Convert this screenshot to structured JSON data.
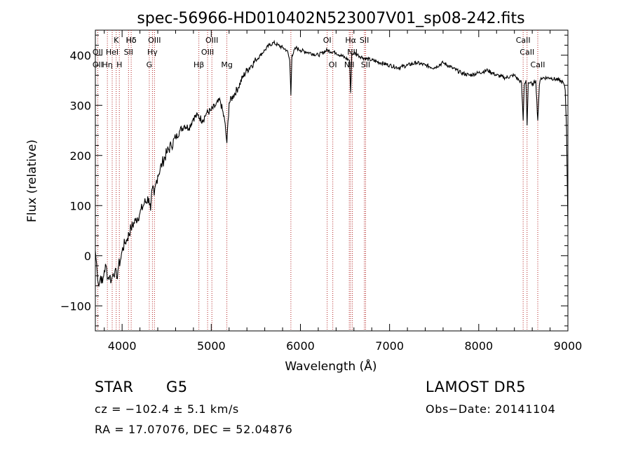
{
  "chart_data": {
    "type": "line",
    "title": "spec-56966-HD010402N523007V01_sp08-242.fits",
    "xlabel": "Wavelength (Å)",
    "ylabel": "Flux (relative)",
    "xlim": [
      3700,
      9000
    ],
    "ylim": [
      -150,
      450
    ],
    "x_ticks": [
      4000,
      5000,
      6000,
      7000,
      8000,
      9000
    ],
    "y_ticks": [
      -100,
      0,
      100,
      200,
      300,
      400
    ],
    "grid": false,
    "series": [
      {
        "x": [
          3700,
          3720,
          3740,
          3760,
          3780,
          3800,
          3820,
          3840,
          3860,
          3880,
          3900,
          3920,
          3940,
          3960,
          3980,
          4000,
          4030,
          4060,
          4100,
          4150,
          4200,
          4250,
          4300,
          4320,
          4340,
          4360,
          4380,
          4400,
          4450,
          4500,
          4550,
          4600,
          4650,
          4700,
          4750,
          4800,
          4850,
          4900,
          4950,
          5000,
          5050,
          5100,
          5150,
          5175,
          5200,
          5250,
          5300,
          5350,
          5400,
          5450,
          5500,
          5550,
          5600,
          5650,
          5700,
          5750,
          5800,
          5850,
          5880,
          5893,
          5905,
          5950,
          6000,
          6100,
          6200,
          6300,
          6400,
          6500,
          6550,
          6563,
          6575,
          6600,
          6650,
          6700,
          6800,
          6900,
          7000,
          7100,
          7200,
          7300,
          7400,
          7500,
          7600,
          7700,
          7800,
          7900,
          8000,
          8100,
          8200,
          8300,
          8400,
          8450,
          8480,
          8498,
          8510,
          8530,
          8542,
          8555,
          8580,
          8600,
          8640,
          8662,
          8680,
          8700,
          8800,
          8900,
          8950,
          8970,
          8985,
          9000
        ],
        "y": [
          10,
          -30,
          -60,
          -40,
          -55,
          -30,
          -20,
          -45,
          -40,
          -50,
          -35,
          -30,
          -45,
          -20,
          -10,
          10,
          25,
          35,
          55,
          70,
          85,
          105,
          115,
          90,
          135,
          120,
          145,
          160,
          185,
          205,
          220,
          235,
          250,
          260,
          255,
          275,
          280,
          270,
          285,
          290,
          300,
          310,
          270,
          225,
          305,
          320,
          335,
          355,
          370,
          380,
          390,
          400,
          410,
          420,
          425,
          420,
          415,
          410,
          390,
          320,
          400,
          415,
          410,
          405,
          400,
          410,
          405,
          395,
          390,
          325,
          400,
          405,
          400,
          395,
          390,
          385,
          380,
          375,
          380,
          385,
          380,
          375,
          385,
          375,
          365,
          360,
          365,
          370,
          360,
          355,
          360,
          350,
          345,
          270,
          340,
          350,
          260,
          345,
          345,
          340,
          350,
          270,
          340,
          355,
          355,
          350,
          345,
          330,
          250,
          60
        ]
      }
    ],
    "annotations": [
      {
        "label": "Hδ",
        "x": 4102,
        "row": 1
      },
      {
        "label": "K",
        "x": 3934,
        "row": 1
      },
      {
        "label": "Hδ",
        "x": 4102,
        "row": 1
      },
      {
        "label": "OIII",
        "x": 4363,
        "row": 1
      },
      {
        "label": "OIII",
        "x": 5007,
        "row": 1
      },
      {
        "label": "OI",
        "x": 6300,
        "row": 1
      },
      {
        "label": "Hα",
        "x": 6563,
        "row": 1
      },
      {
        "label": "SII",
        "x": 6717,
        "row": 1
      },
      {
        "label": "CaII",
        "x": 8498,
        "row": 1
      },
      {
        "label": "OII",
        "x": 3727,
        "row": 2
      },
      {
        "label": "HeI",
        "x": 3889,
        "row": 2
      },
      {
        "label": "SII",
        "x": 4072,
        "row": 2
      },
      {
        "label": "Hγ",
        "x": 4340,
        "row": 2
      },
      {
        "label": "OIII",
        "x": 4959,
        "row": 2
      },
      {
        "label": "NII",
        "x": 6583,
        "row": 2
      },
      {
        "label": "CaII",
        "x": 8542,
        "row": 2
      },
      {
        "label": "OII",
        "x": 3727,
        "row": 3
      },
      {
        "label": "Hη",
        "x": 3835,
        "row": 3
      },
      {
        "label": "H",
        "x": 3969,
        "row": 3
      },
      {
        "label": "G",
        "x": 4305,
        "row": 3
      },
      {
        "label": "Hβ",
        "x": 4861,
        "row": 3
      },
      {
        "label": "Mg",
        "x": 5175,
        "row": 3
      },
      {
        "label": "OI",
        "x": 6363,
        "row": 3
      },
      {
        "label": "NII",
        "x": 6548,
        "row": 3
      },
      {
        "label": "SII",
        "x": 6731,
        "row": 3
      },
      {
        "label": "CaII",
        "x": 8662,
        "row": 3
      }
    ],
    "line_markers": [
      3727,
      3835,
      3889,
      3934,
      3969,
      4072,
      4102,
      4305,
      4340,
      4363,
      4861,
      4959,
      5007,
      5175,
      5893,
      6300,
      6363,
      6548,
      6563,
      6583,
      6717,
      6731,
      8498,
      8542,
      8662
    ]
  },
  "info": {
    "type_label": "STAR",
    "subclass": "G5",
    "survey": "LAMOST  DR5",
    "cz": "cz = −102.4 ± 5.1 km/s",
    "obs_date": "Obs−Date: 20141104",
    "radec": "RA =  17.07076, DEC =  52.04876"
  }
}
